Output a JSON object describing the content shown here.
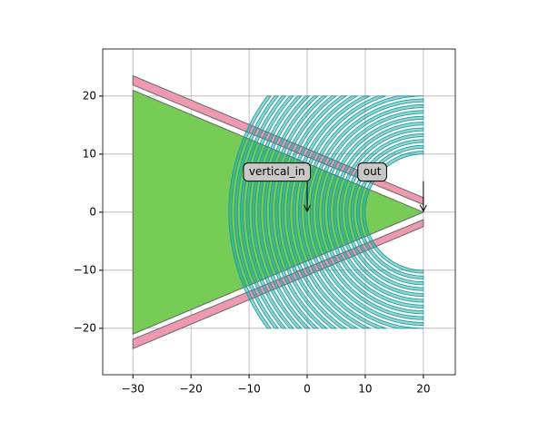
{
  "chart_data": {
    "type": "layout",
    "xlim": [
      -35.2,
      25.5
    ],
    "ylim": [
      -28,
      28.1
    ],
    "xticks": [
      {
        "value": -30,
        "label": "−30"
      },
      {
        "value": -20,
        "label": "−20"
      },
      {
        "value": -10,
        "label": "−10"
      },
      0,
      10,
      20
    ],
    "yticks": [
      {
        "value": -20,
        "label": "−20"
      },
      {
        "value": -10,
        "label": "−10"
      },
      0,
      10,
      20
    ],
    "grid": true,
    "polygons": [
      {
        "color": "#77cc55",
        "x": [
          -30,
          20,
          -30
        ],
        "y": [
          21,
          0,
          -21
        ]
      },
      {
        "color": "#ee99b0",
        "x": [
          -30,
          20,
          20,
          -30
        ],
        "y": [
          23.5,
          2.5,
          1.3,
          21.9
        ]
      },
      {
        "color": "#ee99b0",
        "x": [
          -30,
          20,
          20,
          -30
        ],
        "y": [
          -23.5,
          -2.5,
          -1.3,
          -21.9
        ]
      }
    ],
    "rings": {
      "color": "#1aa0a0",
      "center": [
        20,
        0
      ],
      "width": 0.5,
      "ymax": 20,
      "radii": [
        10,
        11,
        12,
        13,
        14,
        15,
        16,
        17,
        18,
        19,
        20,
        21,
        22,
        23,
        24,
        25,
        26,
        27,
        28,
        29,
        30,
        31,
        32,
        33
      ]
    },
    "annotations": [
      {
        "text": "vertical_in",
        "xy": [
          0,
          0
        ],
        "xytext": [
          -5.2,
          6.9
        ]
      },
      {
        "text": "out",
        "xy": [
          20,
          0
        ],
        "xytext": [
          11.2,
          6.9
        ]
      }
    ]
  }
}
